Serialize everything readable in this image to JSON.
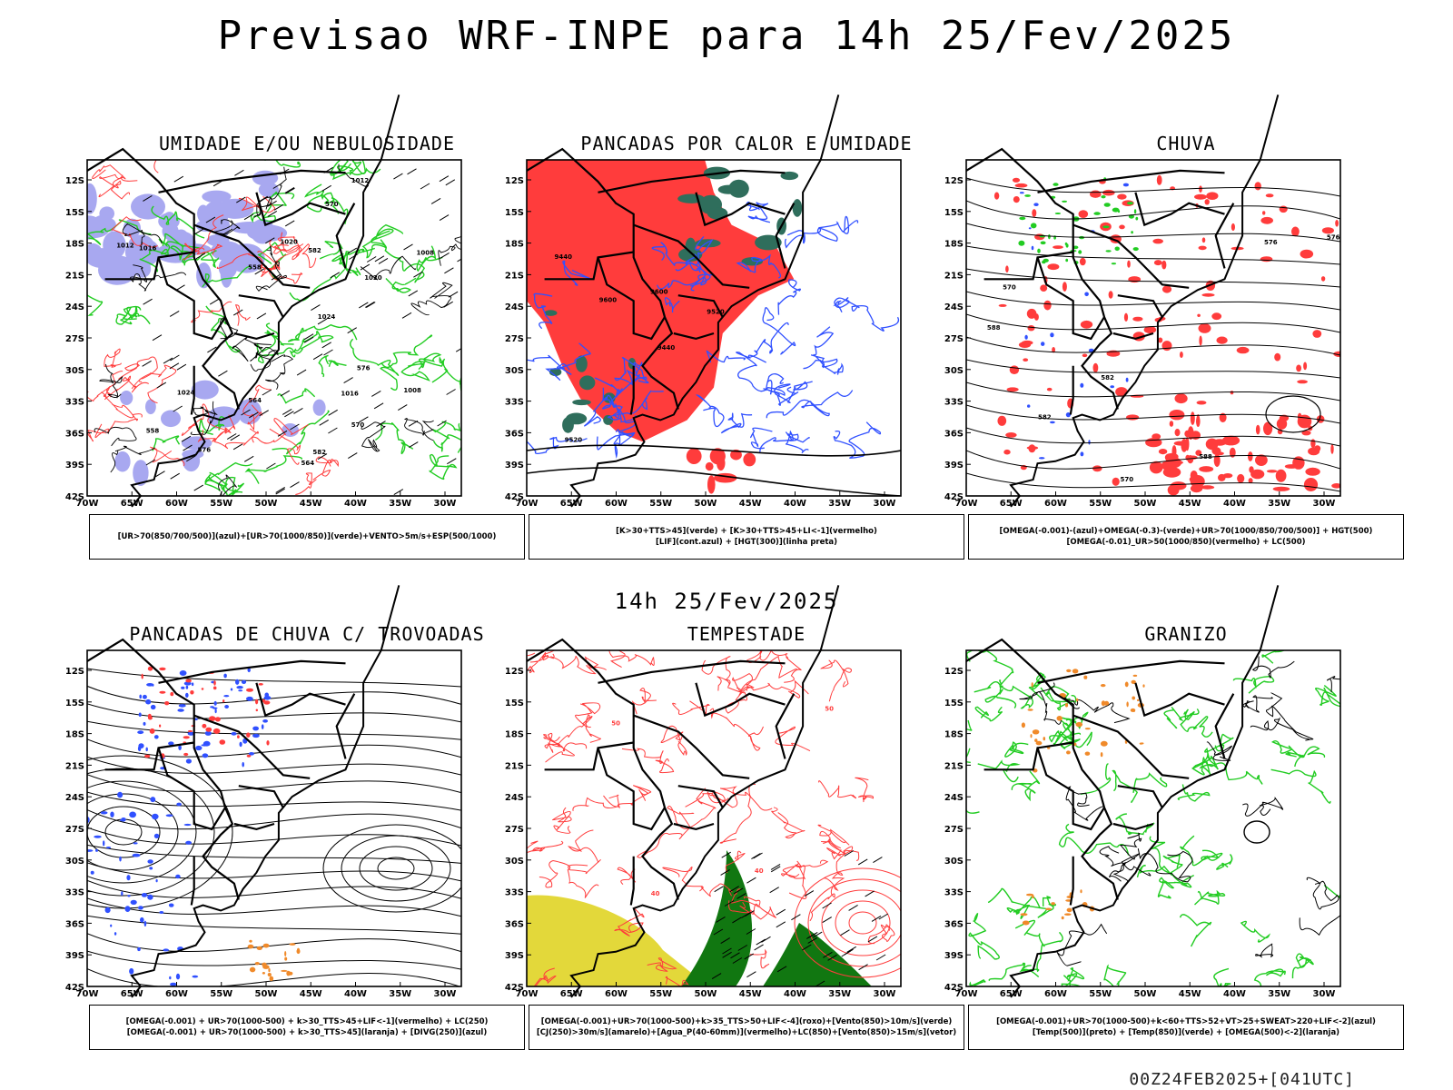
{
  "header": {
    "title": "Previsao WRF-INPE  para 14h 25/Fev/2025"
  },
  "mid_title": "14h 25/Fev/2025",
  "footer": "00Z24FEB2025+[041UTC]",
  "axes": {
    "lat_labels": [
      "12S",
      "15S",
      "18S",
      "21S",
      "24S",
      "27S",
      "30S",
      "33S",
      "36S",
      "39S",
      "42S"
    ],
    "lon_labels": [
      "70W",
      "65W",
      "60W",
      "55W",
      "50W",
      "45W",
      "40W",
      "35W",
      "30W"
    ]
  },
  "panels": [
    {
      "title": "UMIDADE E/OU NEBULOSIDADE",
      "legend": [
        "[UR>70(850/700/500)](azul)+[UR>70(1000/850)](verde)+VENTO>5m/s+ESP(500/1000)"
      ],
      "labels": [
        "1012",
        "1016",
        "1020",
        "1024",
        "1008",
        "576",
        "570",
        "564",
        "558",
        "582"
      ]
    },
    {
      "title": "PANCADAS POR CALOR E UMIDADE",
      "legend": [
        "[K>30+TTS>45](verde) + [K>30+TTS>45+LI<-1](vermelho)",
        "[LIF](cont.azul) + [HGT(300)](linha preta)"
      ],
      "labels": [
        "9600",
        "9520",
        "9440"
      ]
    },
    {
      "title": "CHUVA",
      "legend": [
        "[OMEGA(-0.001)-(azul)+OMEGA(-0.3)-(verde)+UR>70(1000/850/700/500)] + HGT(500)",
        "[OMEGA(-0.01)_UR>50(1000/850)(vermelho) + LC(500)"
      ],
      "labels": [
        "588",
        "582",
        "576",
        "570"
      ]
    },
    {
      "title": "PANCADAS DE CHUVA C/ TROVOADAS",
      "legend": [
        "[OMEGA(-0.001) + UR>70(1000-500) + k>30_TTS>45+LIF<-1](vermelho) + LC(250)",
        "[OMEGA(-0.001) + UR>70(1000-500) + k>30_TTS>45](laranja) + [DIVG(250)](azul)"
      ],
      "labels": []
    },
    {
      "title": "TEMPESTADE",
      "legend": [
        "[OMEGA(-0.001)+UR>70(1000-500)+k>35_TTS>50+LIF<-4](roxo)+[Vento(850)>10m/s](verde)",
        "[CJ(250)>30m/s](amarelo)+[Agua_P(40-60mm)](vermelho)+LC(850)+[Vento(850)>15m/s](vetor)"
      ],
      "labels": [
        "40",
        "50"
      ]
    },
    {
      "title": "GRANIZO",
      "legend": [
        "[OMEGA(-0.001)+UR>70(1000-500)+k<60+TTS>52+VT>25+SWEAT>220+LIF<-2](azul)",
        "[Temp(500)](preto) + [Temp(850)](verde) + [OMEGA(500)<-2](laranja)"
      ],
      "labels": []
    }
  ],
  "colors": {
    "blue": "#3050ff",
    "green": "#22cc22",
    "red": "#ff3c3c",
    "teal": "#2f6e5c",
    "lavender": "#a8a8f0",
    "yellow": "#e3d83a",
    "orange": "#f08a2a",
    "darkgreen": "#117711"
  }
}
